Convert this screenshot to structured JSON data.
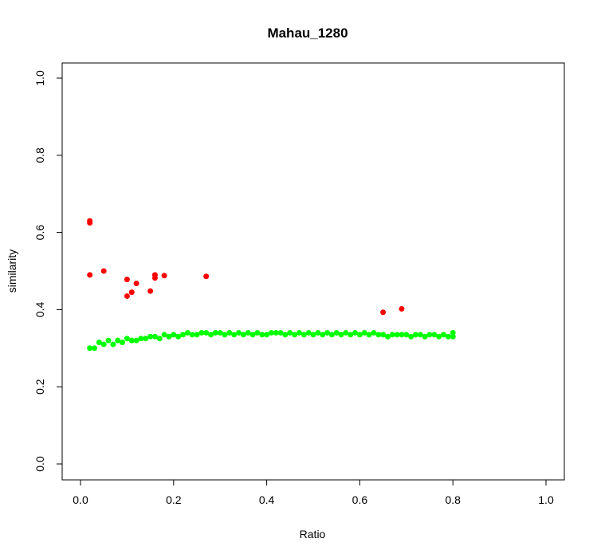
{
  "chart_data": {
    "type": "scatter",
    "title": "Mahau_1280",
    "xlabel": "Ratio",
    "ylabel": "similarity",
    "xlim": [
      0.0,
      1.0
    ],
    "ylim": [
      0.0,
      1.0
    ],
    "x_ticks": [
      "0.0",
      "0.2",
      "0.4",
      "0.6",
      "0.8",
      "1.0"
    ],
    "y_ticks": [
      "0.0",
      "0.2",
      "0.4",
      "0.6",
      "0.8",
      "1.0"
    ],
    "grid": false,
    "colors": {
      "green": "#00ff00",
      "red": "#ff0000"
    },
    "series": [
      {
        "color": "green",
        "x": [
          0.02,
          0.03,
          0.04,
          0.05,
          0.06,
          0.07,
          0.08,
          0.09,
          0.1,
          0.11,
          0.12,
          0.13,
          0.14,
          0.15,
          0.16,
          0.17,
          0.18,
          0.19,
          0.2,
          0.21,
          0.22,
          0.23,
          0.24,
          0.25,
          0.26,
          0.27,
          0.28,
          0.29,
          0.3,
          0.31,
          0.32,
          0.33,
          0.34,
          0.35,
          0.36,
          0.37,
          0.38,
          0.39,
          0.4,
          0.41,
          0.42,
          0.43,
          0.44,
          0.45,
          0.46,
          0.47,
          0.48,
          0.49,
          0.5,
          0.51,
          0.52,
          0.53,
          0.54,
          0.55,
          0.56,
          0.57,
          0.58,
          0.59,
          0.6,
          0.61,
          0.62,
          0.63,
          0.64,
          0.65,
          0.66,
          0.67,
          0.68,
          0.69,
          0.7,
          0.71,
          0.72,
          0.73,
          0.74,
          0.75,
          0.76,
          0.77,
          0.78,
          0.79,
          0.8,
          0.8
        ],
        "y": [
          0.3,
          0.3,
          0.315,
          0.31,
          0.32,
          0.31,
          0.32,
          0.315,
          0.325,
          0.32,
          0.32,
          0.325,
          0.325,
          0.33,
          0.33,
          0.325,
          0.335,
          0.33,
          0.335,
          0.33,
          0.335,
          0.34,
          0.335,
          0.335,
          0.34,
          0.34,
          0.335,
          0.34,
          0.34,
          0.335,
          0.34,
          0.335,
          0.34,
          0.335,
          0.34,
          0.335,
          0.34,
          0.335,
          0.335,
          0.34,
          0.34,
          0.34,
          0.335,
          0.34,
          0.335,
          0.34,
          0.335,
          0.34,
          0.335,
          0.34,
          0.335,
          0.34,
          0.335,
          0.34,
          0.335,
          0.34,
          0.335,
          0.34,
          0.335,
          0.34,
          0.335,
          0.34,
          0.335,
          0.335,
          0.33,
          0.335,
          0.335,
          0.335,
          0.335,
          0.33,
          0.335,
          0.335,
          0.33,
          0.335,
          0.335,
          0.33,
          0.335,
          0.33,
          0.33,
          0.34
        ]
      },
      {
        "color": "red",
        "x": [
          0.02,
          0.02,
          0.02,
          0.05,
          0.1,
          0.1,
          0.11,
          0.12,
          0.15,
          0.16,
          0.16,
          0.18,
          0.27,
          0.65,
          0.69
        ],
        "y": [
          0.63,
          0.625,
          0.49,
          0.5,
          0.478,
          0.435,
          0.445,
          0.468,
          0.448,
          0.49,
          0.482,
          0.488,
          0.486,
          0.393,
          0.402
        ]
      }
    ]
  }
}
